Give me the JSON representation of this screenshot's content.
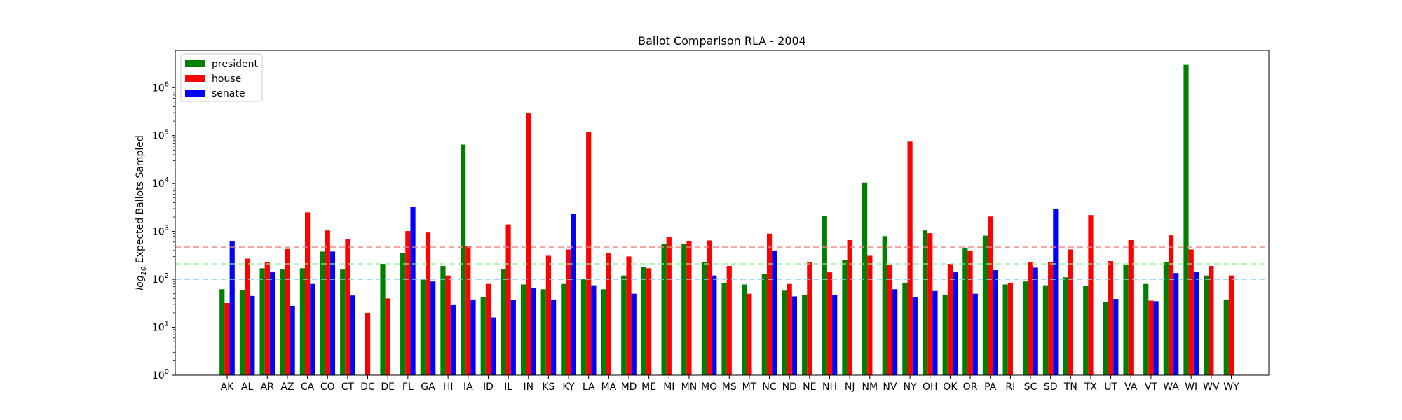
{
  "chart_data": {
    "type": "bar",
    "title": "Ballot Comparison RLA - 2004",
    "xlabel": "",
    "ylabel_prefix": "log",
    "ylabel_sub": "10",
    "ylabel_rest": " Expected Ballots Sampled",
    "y_scale": "log",
    "ylim": [
      1,
      6000000
    ],
    "y_ticks": [
      {
        "value": 1,
        "mant": "10",
        "exp": "0"
      },
      {
        "value": 10,
        "mant": "10",
        "exp": "1"
      },
      {
        "value": 100,
        "mant": "10",
        "exp": "2"
      },
      {
        "value": 1000,
        "mant": "10",
        "exp": "3"
      },
      {
        "value": 10000,
        "mant": "10",
        "exp": "4"
      },
      {
        "value": 100000,
        "mant": "10",
        "exp": "5"
      },
      {
        "value": 1000000,
        "mant": "10",
        "exp": "6"
      }
    ],
    "grid": false,
    "legend_position": "top-left",
    "categories": [
      "AK",
      "AL",
      "AR",
      "AZ",
      "CA",
      "CO",
      "CT",
      "DC",
      "DE",
      "FL",
      "GA",
      "HI",
      "IA",
      "ID",
      "IL",
      "IN",
      "KS",
      "KY",
      "LA",
      "MA",
      "MD",
      "ME",
      "MI",
      "MN",
      "MO",
      "MS",
      "MT",
      "NC",
      "ND",
      "NE",
      "NH",
      "NJ",
      "NM",
      "NV",
      "NY",
      "OH",
      "OK",
      "OR",
      "PA",
      "RI",
      "SC",
      "SD",
      "TN",
      "TX",
      "UT",
      "VA",
      "VT",
      "WA",
      "WI",
      "WV",
      "WY"
    ],
    "series": [
      {
        "name": "president",
        "color": "#008000",
        "values": [
          62,
          60,
          170,
          160,
          170,
          380,
          160,
          null,
          210,
          350,
          100,
          190,
          65000,
          42,
          160,
          78,
          62,
          80,
          100,
          62,
          120,
          180,
          540,
          550,
          230,
          85,
          78,
          130,
          58,
          48,
          2100,
          250,
          10500,
          800,
          85,
          1050,
          48,
          440,
          820,
          78,
          90,
          75,
          110,
          72,
          34,
          200,
          80,
          230,
          3000000,
          120,
          38
        ]
      },
      {
        "name": "house",
        "color": "#ff0000",
        "values": [
          32,
          270,
          230,
          430,
          2500,
          1050,
          700,
          20,
          40,
          1020,
          950,
          120,
          490,
          80,
          1400,
          290000,
          310,
          420,
          120000,
          360,
          300,
          170,
          760,
          620,
          650,
          190,
          50,
          900,
          80,
          230,
          140,
          660,
          310,
          200,
          75000,
          920,
          210,
          400,
          2050,
          85,
          230,
          230,
          420,
          2200,
          240,
          660,
          36,
          830,
          420,
          190,
          120
        ]
      },
      {
        "name": "senate",
        "color": "#0000ff",
        "values": [
          630,
          45,
          140,
          28,
          80,
          380,
          46,
          null,
          null,
          3300,
          90,
          29,
          38,
          16,
          37,
          65,
          38,
          2300,
          75,
          null,
          50,
          null,
          null,
          null,
          120,
          null,
          null,
          400,
          44,
          null,
          48,
          null,
          null,
          62,
          42,
          57,
          140,
          50,
          155,
          null,
          175,
          3000,
          null,
          null,
          39,
          null,
          35,
          135,
          145,
          null,
          null
        ]
      }
    ],
    "reference_lines": [
      {
        "value": 470,
        "color": "#f08080"
      },
      {
        "value": 210,
        "color": "#90ee90"
      },
      {
        "value": 100,
        "color": "#87ceeb"
      }
    ]
  }
}
